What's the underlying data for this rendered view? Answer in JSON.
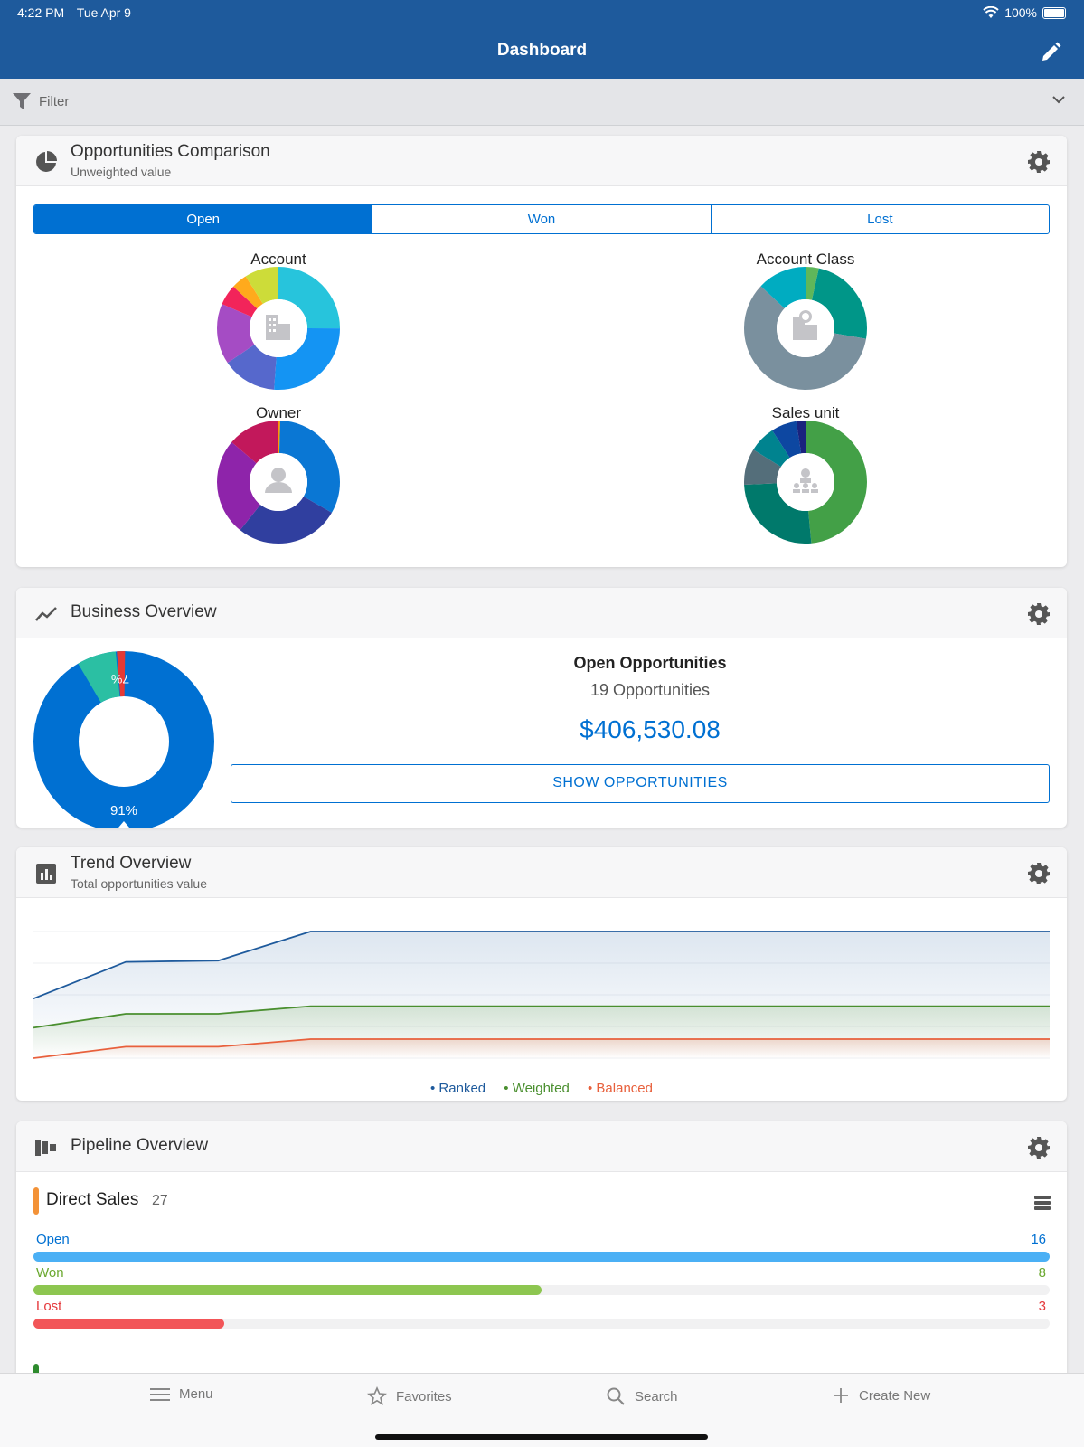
{
  "status": {
    "time": "4:22 PM",
    "date": "Tue Apr 9",
    "battery": "100%"
  },
  "nav": {
    "title": "Dashboard"
  },
  "filter": {
    "label": "Filter"
  },
  "opportunities": {
    "title": "Opportunities Comparison",
    "subtitle": "Unweighted value",
    "tabs": [
      "Open",
      "Won",
      "Lost"
    ],
    "active_tab": "Open",
    "charts": [
      {
        "label": "Account",
        "icon": "building-icon"
      },
      {
        "label": "Account Class",
        "icon": "account-class-icon"
      },
      {
        "label": "Owner",
        "icon": "person-icon"
      },
      {
        "label": "Sales unit",
        "icon": "org-chart-icon"
      }
    ]
  },
  "business": {
    "title": "Business Overview",
    "donut_inner_label": "7%",
    "donut_outer_label": "91%",
    "heading": "Open Opportunities",
    "count": "19 Opportunities",
    "amount": "$406,530.08",
    "button": "SHOW OPPORTUNITIES"
  },
  "trend": {
    "title": "Trend Overview",
    "subtitle": "Total opportunities value",
    "legend": [
      "Ranked",
      "Weighted",
      "Balanced"
    ],
    "colors": {
      "ranked": "#1e5a9c",
      "weighted": "#4a8f2f",
      "balanced": "#e8603c"
    }
  },
  "pipeline": {
    "title": "Pipeline Overview",
    "group": {
      "name": "Direct Sales",
      "count": "27"
    },
    "rows": [
      {
        "label": "Open",
        "value": "16",
        "fraction": 1.0,
        "color": "#4bb0f5",
        "text_color": "#0070d2"
      },
      {
        "label": "Won",
        "value": "8",
        "fraction": 0.5,
        "color": "#8dc650",
        "text_color": "#6aa82f"
      },
      {
        "label": "Lost",
        "value": "3",
        "fraction": 0.1875,
        "color": "#f25558",
        "text_color": "#e5383b"
      }
    ]
  },
  "tabbar": {
    "items": [
      "Menu",
      "Favorites",
      "Search",
      "Create New"
    ]
  },
  "chart_data": {
    "type": "line",
    "title": "Trend Overview",
    "subtitle": "Total opportunities value",
    "x": [
      1,
      2,
      3,
      4,
      5,
      6,
      7,
      8,
      9,
      10,
      11,
      12
    ],
    "series": [
      {
        "name": "Ranked",
        "values": [
          0.47,
          0.76,
          0.77,
          1.0,
          1.0,
          1.0,
          1.0,
          1.0,
          1.0,
          1.0,
          1.0,
          1.0
        ]
      },
      {
        "name": "Weighted",
        "values": [
          0.24,
          0.35,
          0.35,
          0.41,
          0.41,
          0.41,
          0.41,
          0.41,
          0.41,
          0.41,
          0.41,
          0.41
        ]
      },
      {
        "name": "Balanced",
        "values": [
          0.0,
          0.09,
          0.09,
          0.15,
          0.15,
          0.15,
          0.15,
          0.15,
          0.15,
          0.15,
          0.15,
          0.15
        ]
      }
    ],
    "legend": "bottom-center",
    "grid": true
  }
}
